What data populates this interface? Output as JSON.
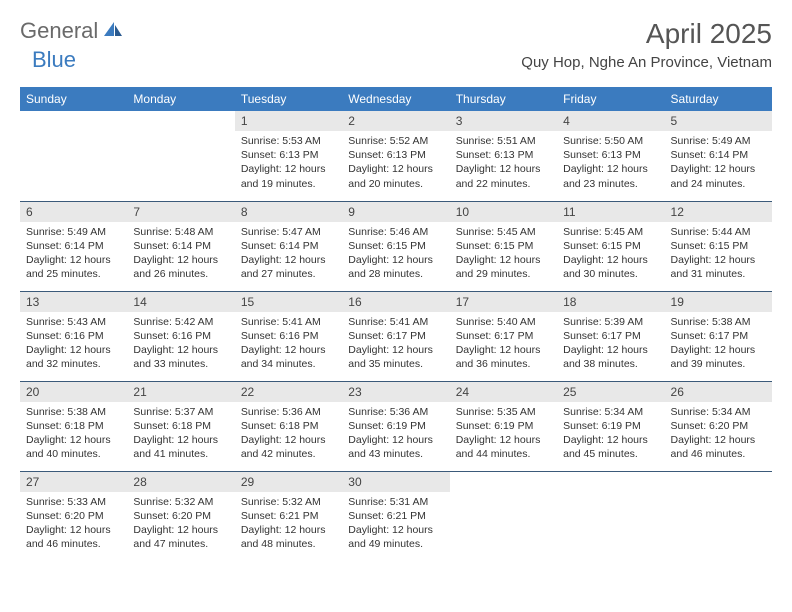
{
  "logo": {
    "general": "General",
    "blue": "Blue"
  },
  "title": "April 2025",
  "location": "Quy Hop, Nghe An Province, Vietnam",
  "colors": {
    "header_bg": "#3b7bbf",
    "header_text": "#ffffff",
    "daynum_bg": "#e8e8e8",
    "border": "#3b5a7a",
    "logo_gray": "#6a6a6a",
    "logo_blue": "#3b7bbf"
  },
  "columns": [
    "Sunday",
    "Monday",
    "Tuesday",
    "Wednesday",
    "Thursday",
    "Friday",
    "Saturday"
  ],
  "weeks": [
    [
      null,
      null,
      {
        "n": "1",
        "sr": "Sunrise: 5:53 AM",
        "ss": "Sunset: 6:13 PM",
        "d1": "Daylight: 12 hours",
        "d2": "and 19 minutes."
      },
      {
        "n": "2",
        "sr": "Sunrise: 5:52 AM",
        "ss": "Sunset: 6:13 PM",
        "d1": "Daylight: 12 hours",
        "d2": "and 20 minutes."
      },
      {
        "n": "3",
        "sr": "Sunrise: 5:51 AM",
        "ss": "Sunset: 6:13 PM",
        "d1": "Daylight: 12 hours",
        "d2": "and 22 minutes."
      },
      {
        "n": "4",
        "sr": "Sunrise: 5:50 AM",
        "ss": "Sunset: 6:13 PM",
        "d1": "Daylight: 12 hours",
        "d2": "and 23 minutes."
      },
      {
        "n": "5",
        "sr": "Sunrise: 5:49 AM",
        "ss": "Sunset: 6:14 PM",
        "d1": "Daylight: 12 hours",
        "d2": "and 24 minutes."
      }
    ],
    [
      {
        "n": "6",
        "sr": "Sunrise: 5:49 AM",
        "ss": "Sunset: 6:14 PM",
        "d1": "Daylight: 12 hours",
        "d2": "and 25 minutes."
      },
      {
        "n": "7",
        "sr": "Sunrise: 5:48 AM",
        "ss": "Sunset: 6:14 PM",
        "d1": "Daylight: 12 hours",
        "d2": "and 26 minutes."
      },
      {
        "n": "8",
        "sr": "Sunrise: 5:47 AM",
        "ss": "Sunset: 6:14 PM",
        "d1": "Daylight: 12 hours",
        "d2": "and 27 minutes."
      },
      {
        "n": "9",
        "sr": "Sunrise: 5:46 AM",
        "ss": "Sunset: 6:15 PM",
        "d1": "Daylight: 12 hours",
        "d2": "and 28 minutes."
      },
      {
        "n": "10",
        "sr": "Sunrise: 5:45 AM",
        "ss": "Sunset: 6:15 PM",
        "d1": "Daylight: 12 hours",
        "d2": "and 29 minutes."
      },
      {
        "n": "11",
        "sr": "Sunrise: 5:45 AM",
        "ss": "Sunset: 6:15 PM",
        "d1": "Daylight: 12 hours",
        "d2": "and 30 minutes."
      },
      {
        "n": "12",
        "sr": "Sunrise: 5:44 AM",
        "ss": "Sunset: 6:15 PM",
        "d1": "Daylight: 12 hours",
        "d2": "and 31 minutes."
      }
    ],
    [
      {
        "n": "13",
        "sr": "Sunrise: 5:43 AM",
        "ss": "Sunset: 6:16 PM",
        "d1": "Daylight: 12 hours",
        "d2": "and 32 minutes."
      },
      {
        "n": "14",
        "sr": "Sunrise: 5:42 AM",
        "ss": "Sunset: 6:16 PM",
        "d1": "Daylight: 12 hours",
        "d2": "and 33 minutes."
      },
      {
        "n": "15",
        "sr": "Sunrise: 5:41 AM",
        "ss": "Sunset: 6:16 PM",
        "d1": "Daylight: 12 hours",
        "d2": "and 34 minutes."
      },
      {
        "n": "16",
        "sr": "Sunrise: 5:41 AM",
        "ss": "Sunset: 6:17 PM",
        "d1": "Daylight: 12 hours",
        "d2": "and 35 minutes."
      },
      {
        "n": "17",
        "sr": "Sunrise: 5:40 AM",
        "ss": "Sunset: 6:17 PM",
        "d1": "Daylight: 12 hours",
        "d2": "and 36 minutes."
      },
      {
        "n": "18",
        "sr": "Sunrise: 5:39 AM",
        "ss": "Sunset: 6:17 PM",
        "d1": "Daylight: 12 hours",
        "d2": "and 38 minutes."
      },
      {
        "n": "19",
        "sr": "Sunrise: 5:38 AM",
        "ss": "Sunset: 6:17 PM",
        "d1": "Daylight: 12 hours",
        "d2": "and 39 minutes."
      }
    ],
    [
      {
        "n": "20",
        "sr": "Sunrise: 5:38 AM",
        "ss": "Sunset: 6:18 PM",
        "d1": "Daylight: 12 hours",
        "d2": "and 40 minutes."
      },
      {
        "n": "21",
        "sr": "Sunrise: 5:37 AM",
        "ss": "Sunset: 6:18 PM",
        "d1": "Daylight: 12 hours",
        "d2": "and 41 minutes."
      },
      {
        "n": "22",
        "sr": "Sunrise: 5:36 AM",
        "ss": "Sunset: 6:18 PM",
        "d1": "Daylight: 12 hours",
        "d2": "and 42 minutes."
      },
      {
        "n": "23",
        "sr": "Sunrise: 5:36 AM",
        "ss": "Sunset: 6:19 PM",
        "d1": "Daylight: 12 hours",
        "d2": "and 43 minutes."
      },
      {
        "n": "24",
        "sr": "Sunrise: 5:35 AM",
        "ss": "Sunset: 6:19 PM",
        "d1": "Daylight: 12 hours",
        "d2": "and 44 minutes."
      },
      {
        "n": "25",
        "sr": "Sunrise: 5:34 AM",
        "ss": "Sunset: 6:19 PM",
        "d1": "Daylight: 12 hours",
        "d2": "and 45 minutes."
      },
      {
        "n": "26",
        "sr": "Sunrise: 5:34 AM",
        "ss": "Sunset: 6:20 PM",
        "d1": "Daylight: 12 hours",
        "d2": "and 46 minutes."
      }
    ],
    [
      {
        "n": "27",
        "sr": "Sunrise: 5:33 AM",
        "ss": "Sunset: 6:20 PM",
        "d1": "Daylight: 12 hours",
        "d2": "and 46 minutes."
      },
      {
        "n": "28",
        "sr": "Sunrise: 5:32 AM",
        "ss": "Sunset: 6:20 PM",
        "d1": "Daylight: 12 hours",
        "d2": "and 47 minutes."
      },
      {
        "n": "29",
        "sr": "Sunrise: 5:32 AM",
        "ss": "Sunset: 6:21 PM",
        "d1": "Daylight: 12 hours",
        "d2": "and 48 minutes."
      },
      {
        "n": "30",
        "sr": "Sunrise: 5:31 AM",
        "ss": "Sunset: 6:21 PM",
        "d1": "Daylight: 12 hours",
        "d2": "and 49 minutes."
      },
      null,
      null,
      null
    ]
  ]
}
